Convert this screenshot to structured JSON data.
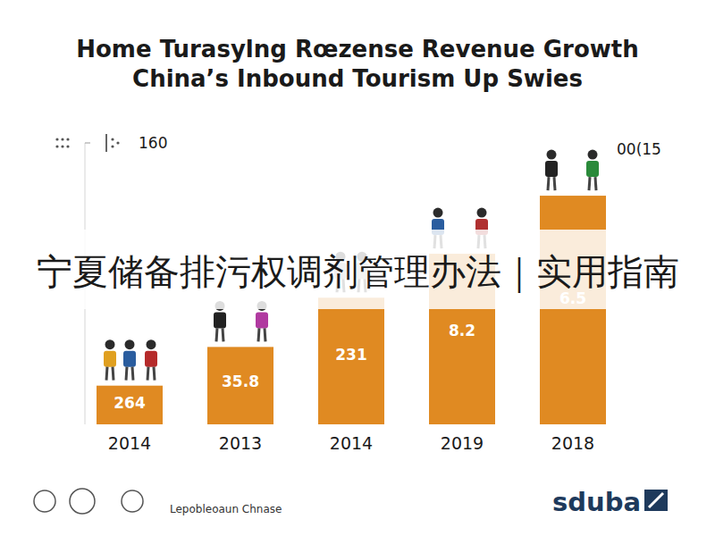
{
  "chart_data": {
    "type": "bar",
    "title": "Home Turasylng Rœzense Revenue Growth",
    "subtitle": "China’s Inbound Tourism Up Swies",
    "categories": [
      "2014",
      "2013",
      "2014",
      "2019",
      "2018"
    ],
    "values": [
      22,
      44,
      72,
      97,
      130
    ],
    "color": "#e08a22",
    "ylim": [
      0,
      160
    ],
    "yticks": [
      160
    ],
    "grid": false,
    "annotations": [
      "264",
      "35.8",
      "231",
      "8.2",
      "6.5"
    ],
    "corner_note": "00(15",
    "banner": "宁夏储备排污权调剂管理办法｜实用指南",
    "footer": "Lepobleoaun Chnase",
    "logo": "sduba"
  }
}
